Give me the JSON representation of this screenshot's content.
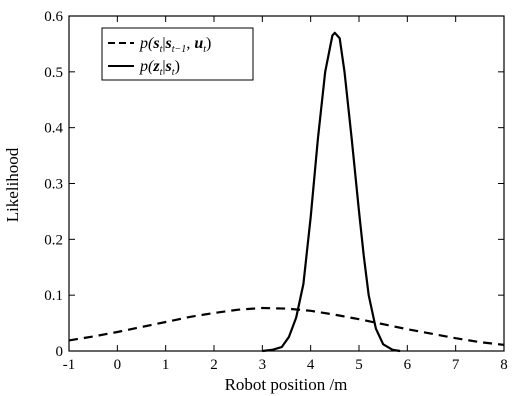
{
  "chart_data": {
    "type": "line",
    "title": "",
    "xlabel": "Robot position /m",
    "ylabel": "Likelihood",
    "xlim": [
      -1,
      8
    ],
    "ylim": [
      0,
      0.6
    ],
    "grid": false,
    "legend_position": "top-left",
    "x_ticks": [
      "-1",
      "0",
      "1",
      "2",
      "3",
      "4",
      "5",
      "6",
      "7",
      "8"
    ],
    "y_ticks": [
      "0",
      "0.1",
      "0.2",
      "0.3",
      "0.4",
      "0.5",
      "0.6"
    ],
    "series": [
      {
        "name": "p(s_t|s_{t-1}, u_t)",
        "legend": {
          "p": "p(",
          "s1": "s",
          "sub1": "t",
          "bar": "|",
          "s2": "s",
          "sub2": "t−1",
          "comma": ", ",
          "u": "u",
          "sub3": "t",
          "close": ")"
        },
        "style": "dashed",
        "x": [
          -1,
          -0.5,
          0,
          0.5,
          1,
          1.5,
          2,
          2.5,
          3,
          3.5,
          4,
          4.5,
          5,
          5.5,
          6,
          6.5,
          7,
          7.5,
          8
        ],
        "y": [
          0.019,
          0.026,
          0.034,
          0.043,
          0.052,
          0.061,
          0.068,
          0.074,
          0.077,
          0.076,
          0.072,
          0.065,
          0.057,
          0.048,
          0.039,
          0.031,
          0.023,
          0.016,
          0.011
        ]
      },
      {
        "name": "p(z_t|s_t)",
        "legend": {
          "p": "p(",
          "z": "z",
          "sub1": "t",
          "bar": "|",
          "s": "s",
          "sub2": "t",
          "close": ")"
        },
        "style": "solid",
        "x": [
          3.0,
          3.2,
          3.4,
          3.55,
          3.7,
          3.85,
          4.0,
          4.15,
          4.3,
          4.45,
          4.5,
          4.6,
          4.7,
          4.85,
          5.0,
          5.1,
          5.2,
          5.35,
          5.5,
          5.7,
          5.85
        ],
        "y": [
          0.0,
          0.002,
          0.007,
          0.025,
          0.06,
          0.12,
          0.24,
          0.38,
          0.5,
          0.565,
          0.57,
          0.56,
          0.5,
          0.38,
          0.25,
          0.17,
          0.1,
          0.04,
          0.012,
          0.002,
          0.0
        ]
      }
    ]
  }
}
